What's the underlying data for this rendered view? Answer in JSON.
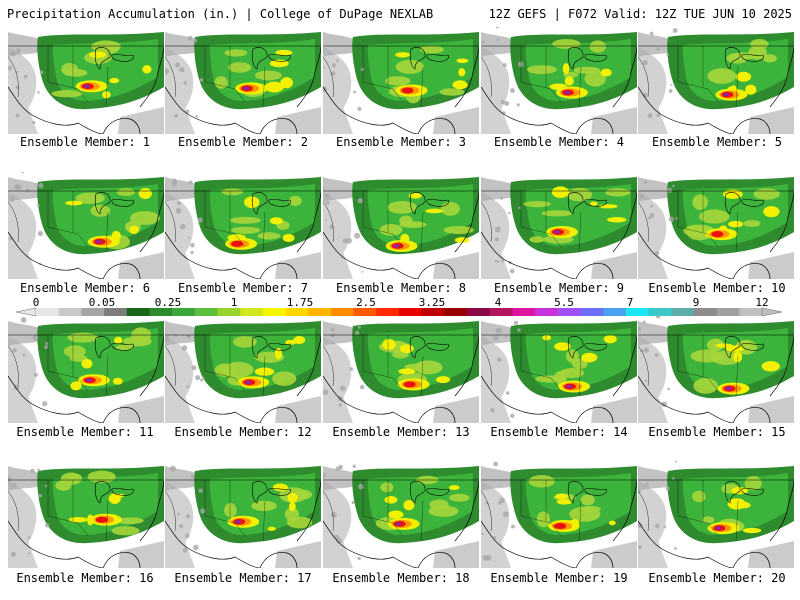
{
  "header": {
    "left": "Precipitation Accumulation (in.) | College of DuPage NEXLAB",
    "right": "12Z GEFS | F072 Valid: 12Z TUE JUN 10 2025"
  },
  "members": [
    {
      "label": "Ensemble Member: 1"
    },
    {
      "label": "Ensemble Member: 2"
    },
    {
      "label": "Ensemble Member: 3"
    },
    {
      "label": "Ensemble Member: 4"
    },
    {
      "label": "Ensemble Member: 5"
    },
    {
      "label": "Ensemble Member: 6"
    },
    {
      "label": "Ensemble Member: 7"
    },
    {
      "label": "Ensemble Member: 8"
    },
    {
      "label": "Ensemble Member: 9"
    },
    {
      "label": "Ensemble Member: 10"
    },
    {
      "label": "Ensemble Member: 11"
    },
    {
      "label": "Ensemble Member: 12"
    },
    {
      "label": "Ensemble Member: 13"
    },
    {
      "label": "Ensemble Member: 14"
    },
    {
      "label": "Ensemble Member: 15"
    },
    {
      "label": "Ensemble Member: 16"
    },
    {
      "label": "Ensemble Member: 17"
    },
    {
      "label": "Ensemble Member: 18"
    },
    {
      "label": "Ensemble Member: 19"
    },
    {
      "label": "Ensemble Member: 20"
    }
  ],
  "colorbar": {
    "ticks": [
      "0",
      "0.05",
      "0.25",
      "1",
      "1.75",
      "2.5",
      "3.25",
      "4",
      "5.5",
      "7",
      "9",
      "12"
    ],
    "colors": [
      "#e6e6e6",
      "#c8c8c8",
      "#a5a5a5",
      "#7d7d7d",
      "#196619",
      "#2d8c2d",
      "#3ca83c",
      "#5fbe3a",
      "#9ad22e",
      "#d2e61c",
      "#f5f500",
      "#ffd700",
      "#ffb400",
      "#ff8c00",
      "#ff5a00",
      "#ff2800",
      "#e60000",
      "#be0000",
      "#960000",
      "#8b0a46",
      "#b4145a",
      "#dc14a0",
      "#c832dc",
      "#a050f0",
      "#6e6ef5",
      "#4ba0f0",
      "#1ee6f0",
      "#3cc8c8",
      "#5faaaa",
      "#8c8c8c",
      "#a0a0a0",
      "#c0c0c0"
    ]
  },
  "map_colors": {
    "light_gray": "#d2d2d2",
    "gray": "#a8a8a8",
    "dark_green": "#2e8b2e",
    "green": "#3cb43c",
    "yellow_green": "#a6d63a",
    "yellow": "#f0f000",
    "orange": "#ff9900",
    "red": "#e81010",
    "purple": "#7a28c8"
  }
}
